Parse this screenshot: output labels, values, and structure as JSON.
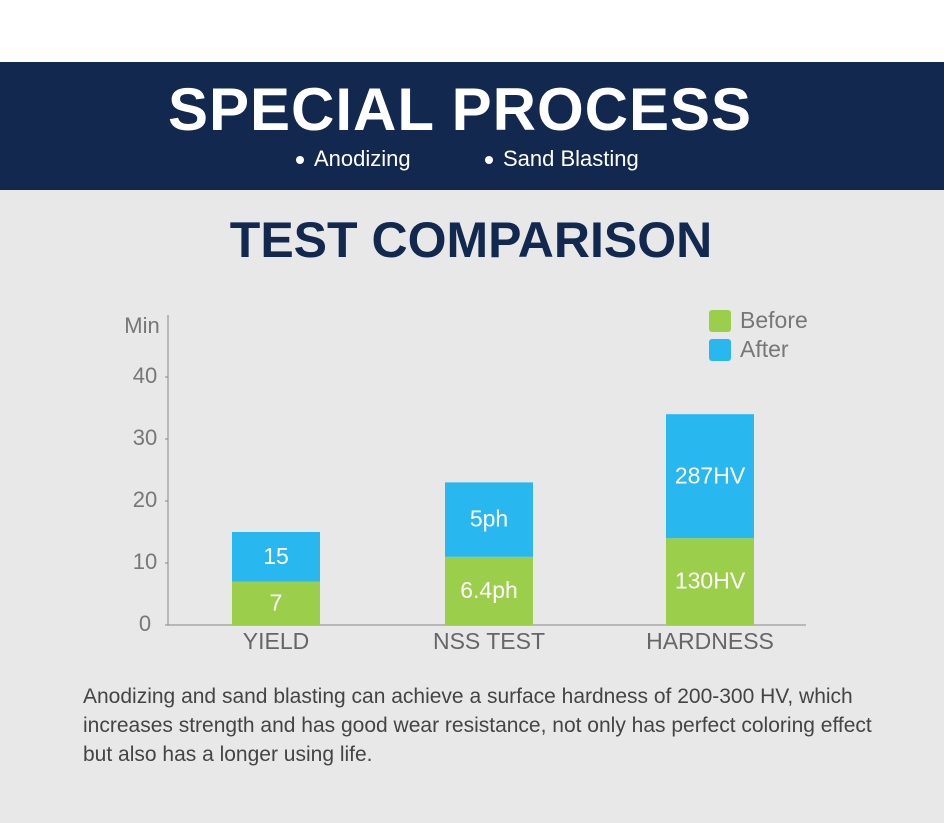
{
  "header": {
    "title": "SPECIAL PROCESS",
    "bullets": [
      "Anodizing",
      "Sand Blasting"
    ]
  },
  "chart_data": {
    "type": "stacked-bar",
    "title": "TEST COMPARISON",
    "y_label": "Min",
    "categories": [
      "YIELD",
      "NSS TEST",
      "HARDNESS"
    ],
    "series": [
      {
        "name": "Before",
        "color": "#9bcf4b",
        "values": [
          7,
          11,
          14
        ],
        "labels": [
          "7",
          "6.4ph",
          "130HV"
        ]
      },
      {
        "name": "After",
        "color": "#29b7ef",
        "values": [
          8,
          12,
          20
        ],
        "labels": [
          "15",
          "5ph",
          "287HV"
        ]
      }
    ],
    "ylim": [
      0,
      50
    ],
    "yticks": [
      0,
      10,
      20,
      30,
      40
    ],
    "legend": "top-right"
  },
  "description": "Anodizing and sand blasting can achieve a surface hardness of 200-300 HV, which increases strength and has good wear resistance, not only has perfect coloring effect but also has a longer using life."
}
